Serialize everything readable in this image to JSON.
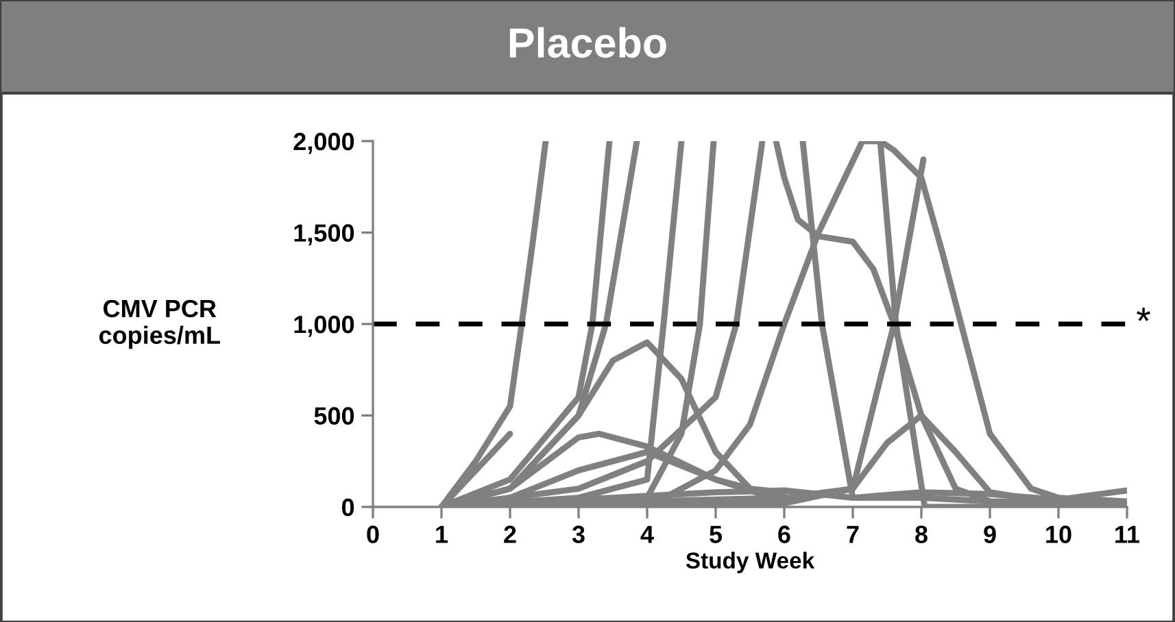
{
  "chart_data": {
    "type": "line",
    "title": "Placebo",
    "xlabel": "Study Week",
    "ylabel": "CMV PCR\ncopies/mL",
    "xlim": [
      0,
      11
    ],
    "xticks": [
      0,
      1,
      2,
      3,
      4,
      5,
      6,
      7,
      8,
      9,
      10,
      11
    ],
    "ylim": [
      0,
      2000
    ],
    "yticks": [
      {
        "value": 0,
        "label": "0"
      },
      {
        "value": 500,
        "label": "500"
      },
      {
        "value": 1000,
        "label": "1,000"
      },
      {
        "value": 1500,
        "label": "1,500"
      },
      {
        "value": 2000,
        "label": "2,000"
      }
    ],
    "grid": false,
    "legend": false,
    "marker": "none",
    "line_style": "solid",
    "ref_lines": [
      {
        "axis": "y",
        "value": 1000,
        "label": "*",
        "color": "#000000",
        "line_style": "dashed"
      }
    ],
    "series": [
      {
        "color": "#808080",
        "x": [
          1,
          1.5,
          2,
          2.17,
          2.35,
          2.52
        ],
        "values": [
          0,
          250,
          550,
          1000,
          1500,
          2000
        ]
      },
      {
        "color": "#808080",
        "x": [
          1,
          2
        ],
        "values": [
          0,
          400
        ]
      },
      {
        "color": "#808080",
        "x": [
          1,
          2,
          3,
          3.5,
          4,
          4.5,
          5,
          5.5,
          6
        ],
        "values": [
          0,
          100,
          500,
          800,
          900,
          700,
          300,
          100,
          80
        ]
      },
      {
        "color": "#808080",
        "x": [
          1,
          2,
          3,
          3.3,
          4,
          5,
          6
        ],
        "values": [
          0,
          100,
          380,
          400,
          330,
          150,
          50
        ]
      },
      {
        "color": "#808080",
        "x": [
          1,
          2,
          3,
          4,
          5,
          6
        ],
        "values": [
          0,
          50,
          200,
          300,
          150,
          30
        ]
      },
      {
        "color": "#808080",
        "x": [
          1,
          2,
          3,
          3.2,
          3.45
        ],
        "values": [
          0,
          150,
          600,
          1000,
          2000
        ]
      },
      {
        "color": "#808080",
        "x": [
          1,
          2,
          3,
          3.4,
          3.85
        ],
        "values": [
          0,
          100,
          500,
          1000,
          2000
        ]
      },
      {
        "color": "#808080",
        "x": [
          1,
          3,
          4,
          4.24,
          4.5
        ],
        "values": [
          0,
          50,
          150,
          1000,
          2000
        ]
      },
      {
        "color": "#808080",
        "x": [
          1,
          3,
          4,
          4.5,
          4.77,
          4.97
        ],
        "values": [
          0,
          20,
          50,
          400,
          1000,
          2000
        ]
      },
      {
        "color": "#808080",
        "x": [
          1,
          3,
          4,
          5,
          5.3,
          5.68
        ],
        "values": [
          0,
          100,
          250,
          600,
          1000,
          2000
        ]
      },
      {
        "color": "#808080",
        "x": [
          5.88,
          6.0,
          6.2,
          6.5,
          7.0,
          7.3,
          7.6,
          8.0,
          8.5,
          9
        ],
        "values": [
          2000,
          1800,
          1570,
          1480,
          1450,
          1300,
          1000,
          500,
          100,
          30
        ]
      },
      {
        "color": "#808080",
        "x": [
          4,
          5,
          5.5,
          6,
          6.5,
          7.14,
          7.4,
          7.6,
          8.0,
          8.3,
          8.58,
          9,
          9.6,
          10,
          11
        ],
        "values": [
          0,
          200,
          450,
          1000,
          1500,
          2000,
          2000,
          1950,
          1800,
          1400,
          1000,
          400,
          100,
          50,
          30
        ]
      },
      {
        "color": "#808080",
        "x": [
          6.27,
          6.55,
          7.0,
          8,
          9,
          11
        ],
        "values": [
          2000,
          1000,
          50,
          50,
          30,
          20
        ]
      },
      {
        "color": "#808080",
        "x": [
          7.4,
          7.63,
          8.05,
          9,
          11
        ],
        "values": [
          2000,
          1000,
          0,
          0,
          0
        ]
      },
      {
        "color": "#808080",
        "x": [
          1,
          6,
          7,
          7.6,
          8.03
        ],
        "values": [
          0,
          50,
          100,
          1000,
          1900
        ]
      },
      {
        "color": "#808080",
        "x": [
          1,
          6,
          7,
          7.5,
          8,
          8.5,
          9,
          10
        ],
        "values": [
          0,
          20,
          100,
          350,
          500,
          300,
          80,
          20
        ]
      },
      {
        "color": "#808080",
        "x": [
          1,
          5,
          6,
          7,
          8,
          9,
          10,
          11
        ],
        "values": [
          0,
          80,
          90,
          50,
          80,
          70,
          40,
          90
        ]
      }
    ]
  }
}
